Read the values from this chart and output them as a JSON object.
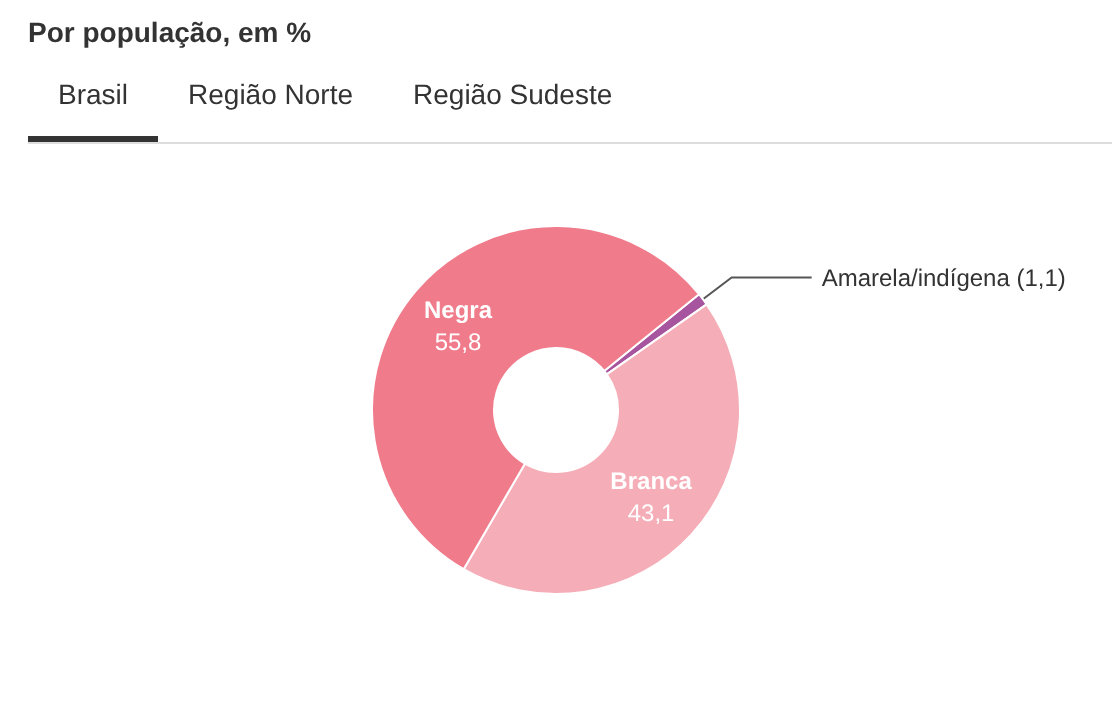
{
  "chart_data": {
    "type": "donut",
    "title": "Por população, em %",
    "annotations": [
      "Brasil",
      "Região Norte",
      "Região Sudeste"
    ],
    "categories": [
      "Amarela/indígena",
      "Branca",
      "Negra"
    ],
    "values": [
      1.1,
      43.1,
      55.8
    ],
    "value_labels": [
      "(1,1)",
      "43,1",
      "55,8"
    ],
    "colors": [
      "#a7559f",
      "#f5aeb7",
      "#f07b8b"
    ],
    "legend": false
  }
}
